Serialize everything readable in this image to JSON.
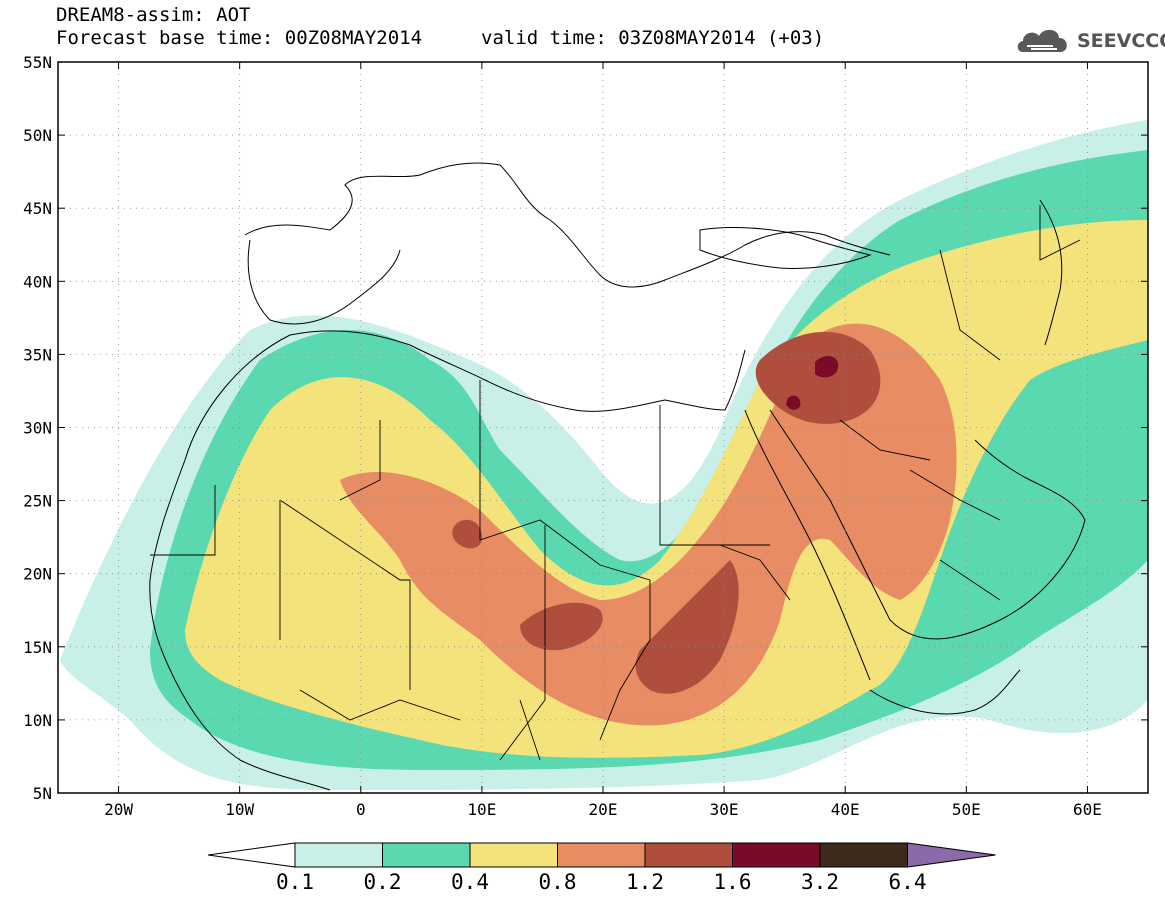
{
  "title": {
    "line1": "DREAM8-assim: AOT",
    "base_time": "Forecast base time: 00Z08MAY2014",
    "valid_time": "valid time: 03Z08MAY2014 (+03)"
  },
  "logo": {
    "text": "SEEVCCC",
    "icon": "cloud-logo-icon"
  },
  "map": {
    "lat_ticks": [
      "55N",
      "50N",
      "45N",
      "40N",
      "35N",
      "30N",
      "25N",
      "20N",
      "15N",
      "10N",
      "5N"
    ],
    "lon_ticks": [
      "20W",
      "10W",
      "0",
      "10E",
      "20E",
      "30E",
      "40E",
      "50E",
      "60E"
    ],
    "lat_values": [
      55,
      50,
      45,
      40,
      35,
      30,
      25,
      20,
      15,
      10,
      5
    ],
    "lon_values": [
      -20,
      -10,
      0,
      10,
      20,
      30,
      40,
      50,
      60
    ],
    "lon_range": [
      -25,
      65
    ],
    "lat_range": [
      5,
      55
    ],
    "grid": "dotted"
  },
  "colorbar": {
    "labels": [
      "0.1",
      "0.2",
      "0.4",
      "0.8",
      "1.2",
      "1.6",
      "3.2",
      "6.4"
    ],
    "colors": [
      "#ffffff",
      "#c8f0e8",
      "#5ad8b0",
      "#f3e37a",
      "#e88c64",
      "#b04e3e",
      "#7a0a28",
      "#3e2a1a",
      "#8a6aa8"
    ]
  }
}
